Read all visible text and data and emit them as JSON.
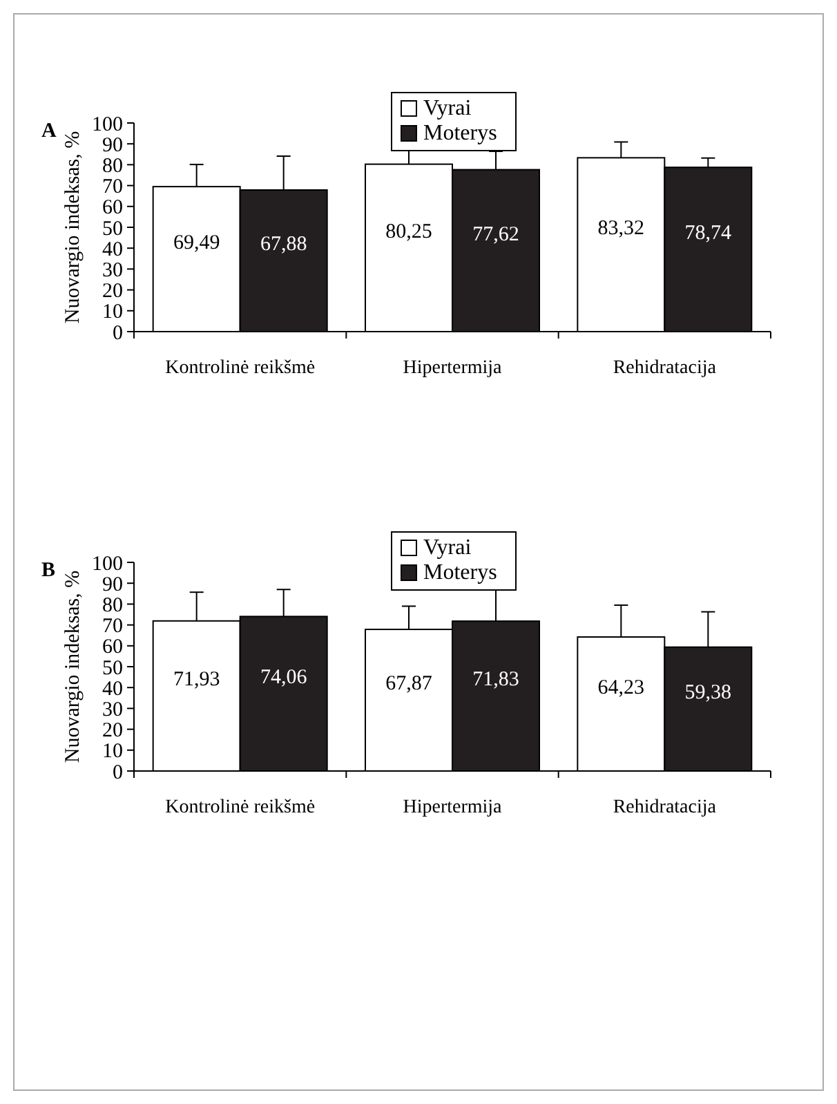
{
  "chart_data": [
    {
      "type": "bar",
      "title": "A",
      "ylabel": "Nuovargio indeksas, %",
      "categories": [
        "Kontrolinė reikšmė",
        "Hipertermija",
        "Rehidratacija"
      ],
      "ylim": [
        0,
        100
      ],
      "yticks": [
        0,
        10,
        20,
        30,
        40,
        50,
        60,
        70,
        80,
        90,
        100
      ],
      "legend": "top",
      "grid": false,
      "series": [
        {
          "name": "Vyrai",
          "color": "#ffffff",
          "values": [
            69.49,
            80.25,
            83.32
          ],
          "value_labels": [
            "69,49",
            "80,25",
            "83,32"
          ],
          "errors": [
            [
              69.49,
              80.1
            ],
            [
              80.25,
              86.8
            ],
            [
              83.32,
              90.9
            ]
          ]
        },
        {
          "name": "Moterys",
          "color": "#231f20",
          "values": [
            67.88,
            77.62,
            78.74
          ],
          "value_labels": [
            "67,88",
            "77,62",
            "78,74"
          ],
          "errors": [
            [
              67.88,
              84.1
            ],
            [
              77.62,
              86.4
            ],
            [
              78.74,
              83.2
            ]
          ]
        }
      ]
    },
    {
      "type": "bar",
      "title": "B",
      "ylabel": "Nuovargio indeksas, %",
      "categories": [
        "Kontrolinė reikšmė",
        "Hipertermija",
        "Rehidratacija"
      ],
      "ylim": [
        0,
        100
      ],
      "yticks": [
        0,
        10,
        20,
        30,
        40,
        50,
        60,
        70,
        80,
        90,
        100
      ],
      "legend": "top",
      "grid": false,
      "series": [
        {
          "name": "Vyrai",
          "color": "#ffffff",
          "values": [
            71.93,
            67.87,
            64.23
          ],
          "value_labels": [
            "71,93",
            "67,87",
            "64,23"
          ],
          "errors": [
            [
              71.93,
              85.7
            ],
            [
              67.87,
              79
            ],
            [
              64.23,
              79.5
            ]
          ]
        },
        {
          "name": "Moterys",
          "color": "#231f20",
          "values": [
            74.06,
            71.83,
            59.38
          ],
          "value_labels": [
            "74,06",
            "71,83",
            "59,38"
          ],
          "errors": [
            [
              74.06,
              87
            ],
            [
              71.83,
              87
            ],
            [
              59.38,
              76.3
            ]
          ]
        }
      ]
    }
  ]
}
